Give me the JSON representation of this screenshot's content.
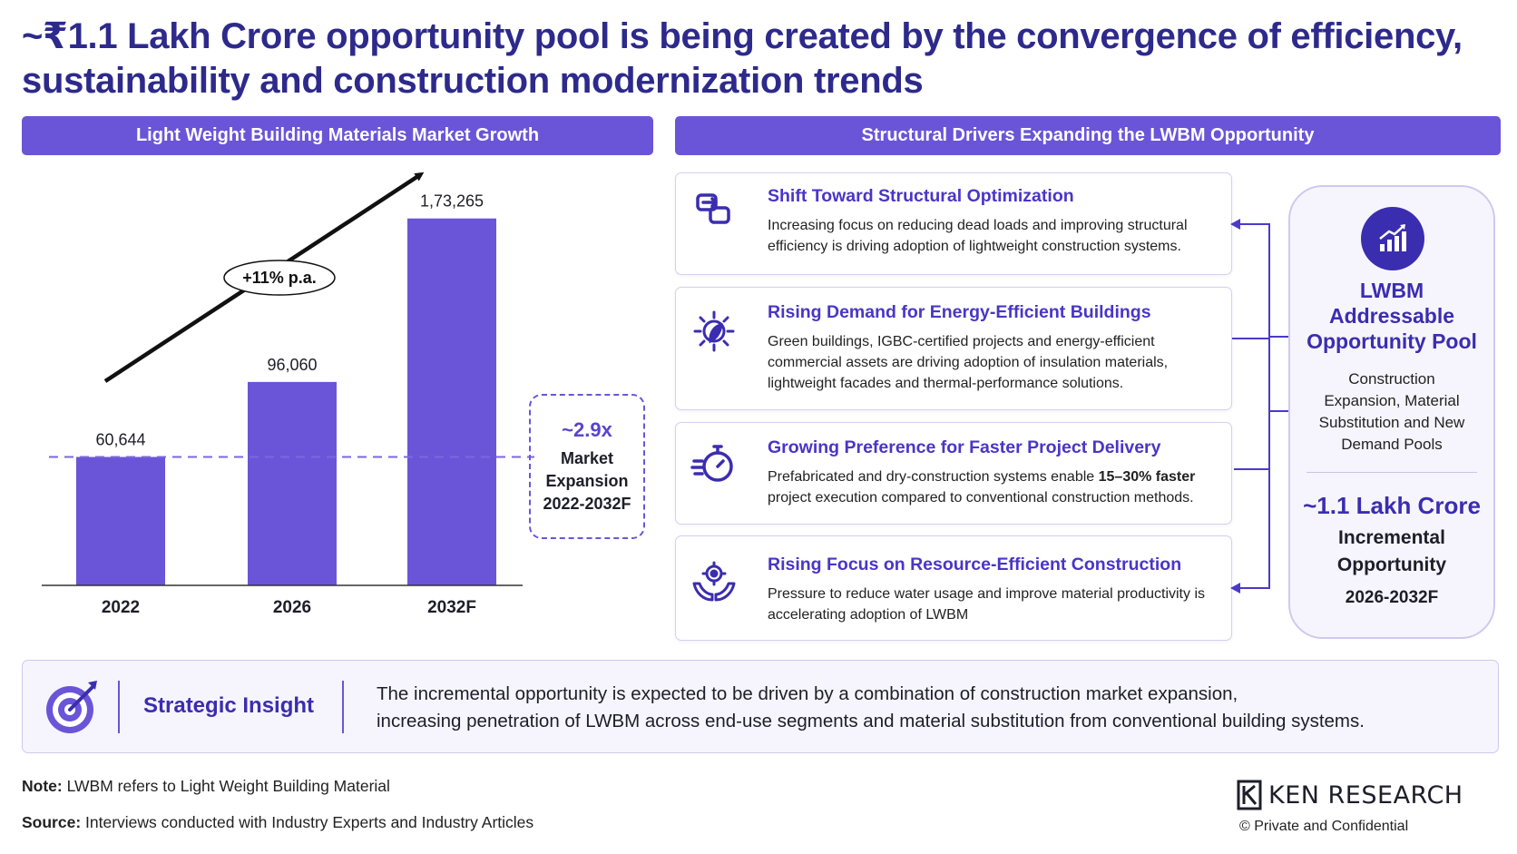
{
  "title": "~₹1.1 Lakh Crore opportunity pool is being created by the convergence of efficiency, sustainability and construction modernization trends",
  "left_header": "Light Weight Building Materials Market Growth",
  "right_header": "Structural Drivers Expanding the LWBM Opportunity",
  "chart_data": {
    "type": "bar",
    "categories": [
      "2022",
      "2026",
      "2032F"
    ],
    "values": [
      60644,
      96060,
      173265
    ],
    "value_labels": [
      "60,644",
      "96,060",
      "1,73,265"
    ],
    "ylim": [
      0,
      180000
    ],
    "growth_label": "+11% p.a.",
    "reference_line_value": 60644,
    "bar_color": "#6a55d8"
  },
  "expansion": {
    "value": "~2.9x",
    "line1": "Market",
    "line2": "Expansion",
    "line3": "2022-2032F"
  },
  "drivers": [
    {
      "icon": "structure-arrows-icon",
      "title": "Shift Toward Structural Optimization",
      "text": "Increasing focus on reducing dead loads and improving structural efficiency is driving adoption of lightweight construction systems."
    },
    {
      "icon": "energy-leaf-bulb-icon",
      "title": "Rising Demand for Energy-Efficient Buildings",
      "text": "Green buildings, IGBC-certified projects and energy-efficient commercial assets are driving adoption of insulation materials, lightweight facades and thermal-performance solutions."
    },
    {
      "icon": "stopwatch-icon",
      "title": "Growing Preference for Faster Project Delivery",
      "text_before": "Prefabricated and dry-construction systems enable ",
      "text_bold": "15–30% faster",
      "text_after": " project execution compared to conventional construction methods."
    },
    {
      "icon": "hands-gear-icon",
      "title": "Rising Focus on Resource-Efficient Construction",
      "text": "Pressure to reduce water usage and improve material productivity is accelerating adoption of LWBM"
    }
  ],
  "pool": {
    "icon": "growth-chart-icon",
    "title_line1": "LWBM",
    "title_line2": "Addressable",
    "title_line3": "Opportunity Pool",
    "sub_line1": "Construction",
    "sub_line2": "Expansion, Material",
    "sub_line3": "Substitution and New",
    "sub_line4": "Demand Pools",
    "value": "~1.1 Lakh Crore",
    "value_label_line1": "Incremental",
    "value_label_line2": "Opportunity",
    "period": "2026-2032F"
  },
  "insight": {
    "label": "Strategic Insight",
    "line1": "The incremental opportunity is expected to be driven by a combination of construction market expansion,",
    "line2": "increasing penetration of LWBM across end-use segments and material substitution from conventional building systems."
  },
  "footer": {
    "note_label": "Note:",
    "note_text": "LWBM refers to Light Weight Building Material",
    "source_label": "Source:",
    "source_text": "Interviews conducted with Industry Experts and Industry Articles",
    "logo_text": "KEN RESEARCH",
    "confidential": "© Private and Confidential"
  }
}
